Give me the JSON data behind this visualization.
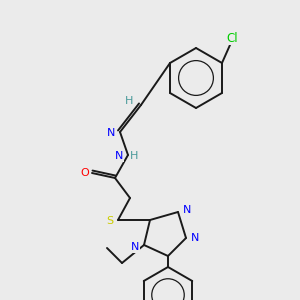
{
  "background_color": "#ebebeb",
  "bond_color": "#1a1a1a",
  "atom_colors": {
    "N": "#0000ff",
    "O": "#ff0000",
    "S": "#cccc00",
    "Cl": "#00cc00",
    "H": "#4a9a9a",
    "C": "#1a1a1a"
  },
  "figsize": [
    3.0,
    3.0
  ],
  "dpi": 100,
  "bond_lw": 1.4,
  "font_size": 8.0
}
